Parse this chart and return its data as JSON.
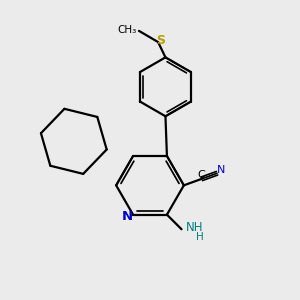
{
  "bg_color": "#ebebeb",
  "bond_color": "#000000",
  "nitrogen_color": "#0000cc",
  "sulfur_color": "#b8a000",
  "nh2_color": "#008080",
  "figsize": [
    3.0,
    3.0
  ],
  "dpi": 100,
  "xlim": [
    0,
    10
  ],
  "ylim": [
    0,
    10
  ]
}
